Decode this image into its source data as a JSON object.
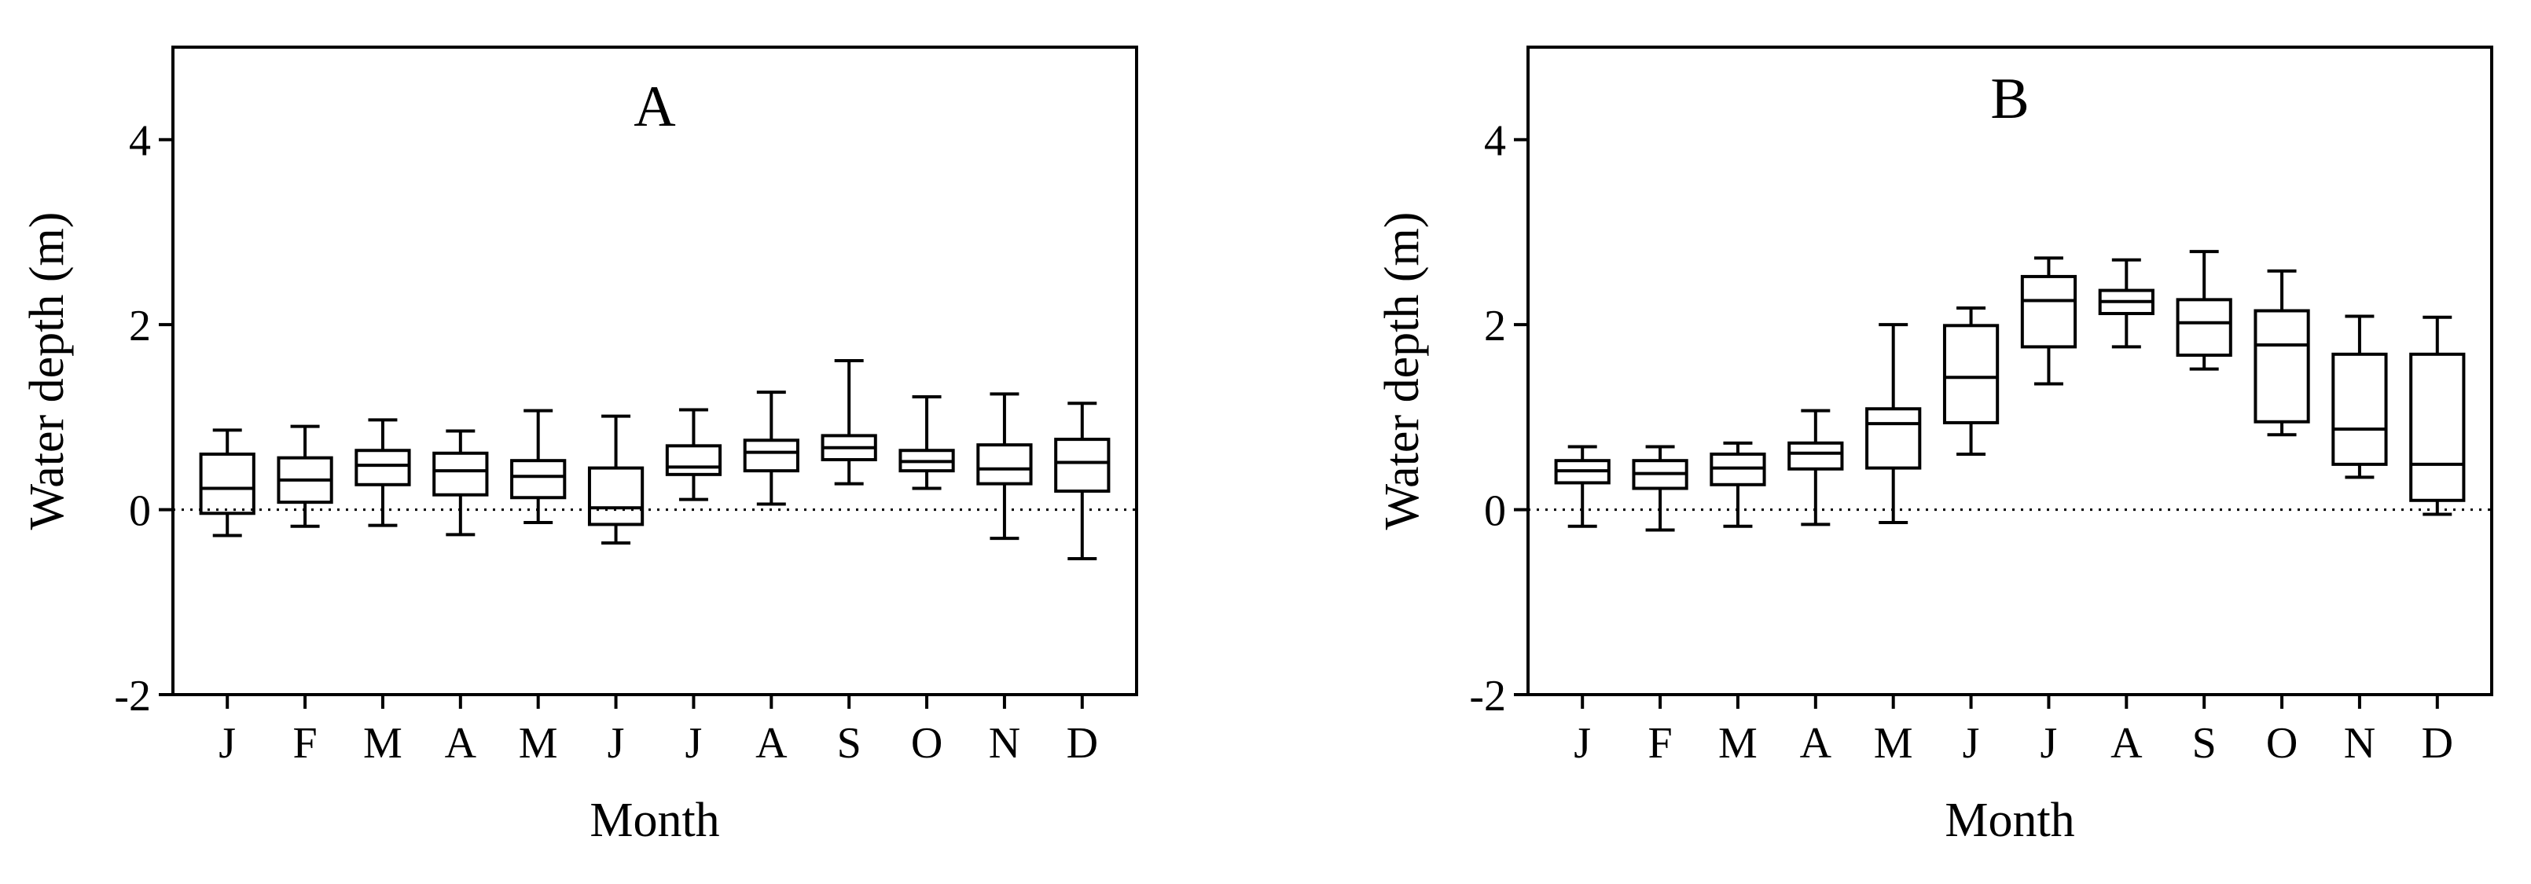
{
  "chart_data": [
    {
      "type": "box",
      "title": "A",
      "xlabel": "Month",
      "ylabel": "Water depth (m)",
      "ylim": [
        -2,
        5
      ],
      "yticks": [
        -2,
        0,
        2,
        4
      ],
      "reference_line": 0,
      "categories": [
        "J",
        "F",
        "M",
        "A",
        "M",
        "J",
        "J",
        "A",
        "S",
        "O",
        "N",
        "D"
      ],
      "boxes": [
        {
          "min": -0.28,
          "q1": -0.04,
          "median": 0.23,
          "q3": 0.6,
          "max": 0.86
        },
        {
          "min": -0.18,
          "q1": 0.08,
          "median": 0.32,
          "q3": 0.56,
          "max": 0.9
        },
        {
          "min": -0.17,
          "q1": 0.27,
          "median": 0.48,
          "q3": 0.64,
          "max": 0.97
        },
        {
          "min": -0.27,
          "q1": 0.16,
          "median": 0.42,
          "q3": 0.61,
          "max": 0.85
        },
        {
          "min": -0.14,
          "q1": 0.13,
          "median": 0.36,
          "q3": 0.53,
          "max": 1.07
        },
        {
          "min": -0.36,
          "q1": -0.16,
          "median": 0.02,
          "q3": 0.45,
          "max": 1.01
        },
        {
          "min": 0.11,
          "q1": 0.38,
          "median": 0.46,
          "q3": 0.69,
          "max": 1.08
        },
        {
          "min": 0.06,
          "q1": 0.42,
          "median": 0.62,
          "q3": 0.75,
          "max": 1.27
        },
        {
          "min": 0.28,
          "q1": 0.54,
          "median": 0.67,
          "q3": 0.8,
          "max": 1.61
        },
        {
          "min": 0.23,
          "q1": 0.42,
          "median": 0.52,
          "q3": 0.64,
          "max": 1.22
        },
        {
          "min": -0.31,
          "q1": 0.28,
          "median": 0.44,
          "q3": 0.7,
          "max": 1.25
        },
        {
          "min": -0.53,
          "q1": 0.2,
          "median": 0.51,
          "q3": 0.76,
          "max": 1.15
        }
      ]
    },
    {
      "type": "box",
      "title": "B",
      "xlabel": "Month",
      "ylabel": "Water depth (m)",
      "ylim": [
        -2,
        5
      ],
      "yticks": [
        -2,
        0,
        2,
        4
      ],
      "reference_line": 0,
      "categories": [
        "J",
        "F",
        "M",
        "A",
        "M",
        "J",
        "J",
        "A",
        "S",
        "O",
        "N",
        "D"
      ],
      "boxes": [
        {
          "min": -0.18,
          "q1": 0.29,
          "median": 0.42,
          "q3": 0.53,
          "max": 0.68
        },
        {
          "min": -0.22,
          "q1": 0.23,
          "median": 0.39,
          "q3": 0.53,
          "max": 0.68
        },
        {
          "min": -0.18,
          "q1": 0.27,
          "median": 0.45,
          "q3": 0.6,
          "max": 0.72
        },
        {
          "min": -0.16,
          "q1": 0.44,
          "median": 0.61,
          "q3": 0.72,
          "max": 1.07
        },
        {
          "min": -0.14,
          "q1": 0.45,
          "median": 0.93,
          "q3": 1.09,
          "max": 2.0
        },
        {
          "min": 0.6,
          "q1": 0.94,
          "median": 1.43,
          "q3": 1.99,
          "max": 2.18
        },
        {
          "min": 1.36,
          "q1": 1.76,
          "median": 2.26,
          "q3": 2.52,
          "max": 2.72
        },
        {
          "min": 1.76,
          "q1": 2.12,
          "median": 2.25,
          "q3": 2.37,
          "max": 2.7
        },
        {
          "min": 1.52,
          "q1": 1.67,
          "median": 2.02,
          "q3": 2.27,
          "max": 2.79
        },
        {
          "min": 0.81,
          "q1": 0.95,
          "median": 1.78,
          "q3": 2.15,
          "max": 2.58
        },
        {
          "min": 0.35,
          "q1": 0.49,
          "median": 0.87,
          "q3": 1.68,
          "max": 2.09
        },
        {
          "min": -0.05,
          "q1": 0.1,
          "median": 0.49,
          "q3": 1.68,
          "max": 2.08
        }
      ]
    }
  ]
}
